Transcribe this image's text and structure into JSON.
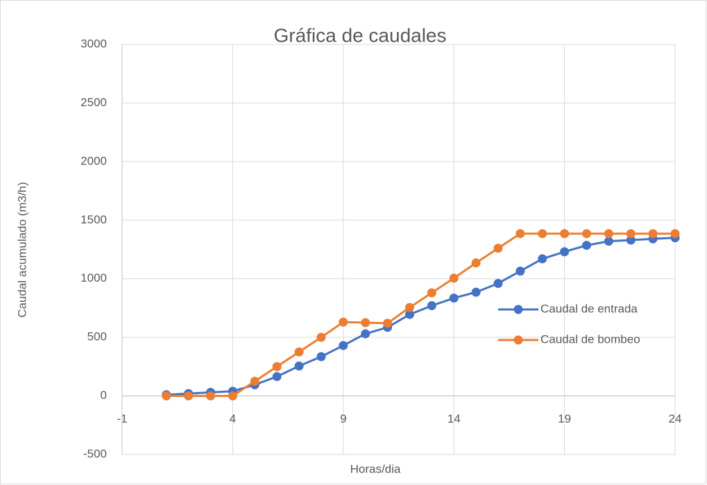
{
  "chart_data": {
    "type": "line",
    "title": "Gráfica de caudales",
    "x_label": "Horas/dia",
    "y_label": "Caudal acumulado (m3/h)",
    "x": [
      1,
      2,
      3,
      4,
      5,
      6,
      7,
      8,
      9,
      10,
      11,
      12,
      13,
      14,
      15,
      16,
      17,
      18,
      19,
      20,
      21,
      22,
      23,
      24
    ],
    "series": [
      {
        "name": "Caudal de entrada",
        "color": "#4472c4",
        "values": [
          10,
          20,
          30,
          40,
          95,
          165,
          255,
          335,
          430,
          530,
          585,
          695,
          770,
          835,
          885,
          960,
          1065,
          1170,
          1230,
          1285,
          1320,
          1330,
          1340,
          1350
        ]
      },
      {
        "name": "Caudal de bombeo",
        "color": "#ed7d31",
        "values": [
          0,
          0,
          0,
          0,
          125,
          250,
          375,
          500,
          630,
          625,
          620,
          755,
          880,
          1005,
          1135,
          1260,
          1385,
          1385,
          1385,
          1385,
          1385,
          1385,
          1385,
          1385
        ]
      }
    ],
    "xlim": [
      -1,
      24
    ],
    "xticks": [
      -1,
      4,
      9,
      14,
      19,
      24
    ],
    "ylim": [
      -500,
      3000
    ],
    "yticks": [
      -500,
      0,
      500,
      1000,
      1500,
      2000,
      2500,
      3000
    ],
    "grid": true,
    "legend": "right"
  }
}
